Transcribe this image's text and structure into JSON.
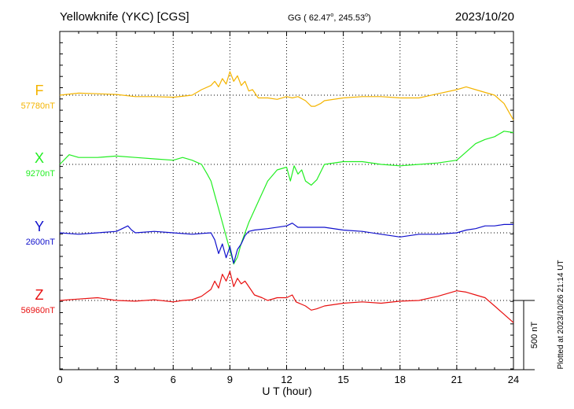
{
  "header": {
    "station": "Yellowknife (YKC)  [CGS]",
    "coords_prefix": "GG ( 62.47",
    "coords_mid": ", 245.53",
    "coords_suffix": ")",
    "degree_mark": "o",
    "date": "2023/10/20"
  },
  "side_note": "Plotted at 2023/10/26 21:14 UT",
  "scale_bar": {
    "label": "500 nT",
    "value_nT": 500
  },
  "chart_data": {
    "type": "line",
    "xlabel": "U T (hour)",
    "xlim": [
      0,
      24
    ],
    "xticks": [
      "0",
      "3",
      "6",
      "9",
      "12",
      "15",
      "18",
      "21",
      "24"
    ],
    "grid": true,
    "units": "nT",
    "series": [
      {
        "name": "F",
        "baseline_label": "57780nT",
        "baseline": 57780,
        "color": "#f4b400",
        "x": [
          0,
          1,
          2,
          3,
          4,
          5,
          6,
          7,
          7.5,
          8,
          8.2,
          8.4,
          8.6,
          8.8,
          9,
          9.2,
          9.4,
          9.6,
          9.8,
          10,
          10.2,
          10.5,
          11,
          11.5,
          12,
          12.3,
          12.6,
          13,
          13.3,
          13.5,
          13.8,
          14,
          15,
          16,
          17,
          18,
          19,
          20,
          21,
          21.5,
          22,
          22.5,
          23,
          23.5,
          24
        ],
        "y": [
          57780,
          57795,
          57790,
          57785,
          57770,
          57770,
          57765,
          57780,
          57820,
          57850,
          57880,
          57840,
          57900,
          57860,
          57950,
          57880,
          57920,
          57850,
          57880,
          57810,
          57820,
          57760,
          57760,
          57750,
          57770,
          57760,
          57770,
          57740,
          57700,
          57700,
          57720,
          57740,
          57760,
          57770,
          57770,
          57760,
          57760,
          57790,
          57820,
          57840,
          57820,
          57800,
          57780,
          57720,
          57600
        ]
      },
      {
        "name": "X",
        "baseline_label": "9270nT",
        "baseline": 9270,
        "color": "#22ee22",
        "x": [
          0,
          0.5,
          1,
          2,
          3,
          4,
          5,
          6,
          6.5,
          7,
          7.5,
          7.8,
          8,
          8.2,
          8.4,
          8.6,
          8.8,
          9,
          9.2,
          9.4,
          9.6,
          10,
          10.5,
          11,
          11.5,
          12,
          12.2,
          12.4,
          12.6,
          12.8,
          13,
          13.3,
          13.6,
          14,
          15,
          16,
          17,
          18,
          19,
          20,
          21,
          21.5,
          22,
          22.5,
          23,
          23.5,
          24
        ],
        "y": [
          9270,
          9340,
          9320,
          9320,
          9330,
          9320,
          9310,
          9300,
          9320,
          9300,
          9270,
          9200,
          9150,
          9050,
          8950,
          8850,
          8750,
          8650,
          8550,
          8600,
          8700,
          8850,
          9000,
          9150,
          9230,
          9250,
          9150,
          9260,
          9200,
          9230,
          9150,
          9120,
          9160,
          9270,
          9290,
          9290,
          9270,
          9260,
          9270,
          9280,
          9300,
          9360,
          9420,
          9450,
          9470,
          9510,
          9500
        ]
      },
      {
        "name": "Y",
        "baseline_label": "2600nT",
        "baseline": 2600,
        "color": "#1010cc",
        "x": [
          0,
          1,
          2,
          3,
          3.6,
          3.8,
          4,
          5,
          6,
          7,
          8,
          8.2,
          8.4,
          8.6,
          8.8,
          9,
          9.2,
          9.4,
          9.6,
          9.8,
          10,
          10.3,
          11,
          12,
          12.3,
          12.6,
          13,
          14,
          15,
          16,
          17,
          18,
          19,
          20,
          21,
          21.5,
          22,
          22.5,
          23,
          23.5,
          24
        ],
        "y": [
          2600,
          2590,
          2600,
          2610,
          2650,
          2620,
          2600,
          2610,
          2600,
          2590,
          2600,
          2550,
          2450,
          2520,
          2420,
          2500,
          2380,
          2480,
          2520,
          2580,
          2610,
          2620,
          2630,
          2650,
          2670,
          2640,
          2640,
          2640,
          2620,
          2610,
          2590,
          2570,
          2590,
          2590,
          2600,
          2620,
          2630,
          2650,
          2650,
          2660,
          2660
        ]
      },
      {
        "name": "Z",
        "baseline_label": "56960nT",
        "baseline": 56960,
        "color": "#e81010",
        "x": [
          0,
          1,
          2,
          3,
          4,
          5,
          6,
          6.5,
          7,
          7.5,
          8,
          8.2,
          8.4,
          8.6,
          8.8,
          9,
          9.2,
          9.4,
          9.6,
          9.8,
          10,
          10.3,
          10.7,
          11,
          11.5,
          12,
          12.3,
          12.5,
          13,
          13.3,
          13.6,
          14,
          15,
          16,
          17,
          18,
          19,
          20,
          21,
          21.5,
          22,
          22.5,
          23,
          23.5,
          24
        ],
        "y": [
          56960,
          56970,
          56980,
          56960,
          56955,
          56965,
          56950,
          56960,
          56965,
          56990,
          57040,
          57100,
          57050,
          57150,
          57100,
          57170,
          57060,
          57120,
          57080,
          57100,
          57060,
          57000,
          56980,
          56960,
          56980,
          56980,
          57000,
          56950,
          56920,
          56890,
          56900,
          56920,
          56940,
          56950,
          56940,
          56955,
          56960,
          56990,
          57030,
          57020,
          57000,
          56980,
          56920,
          56860,
          56800
        ]
      }
    ]
  }
}
